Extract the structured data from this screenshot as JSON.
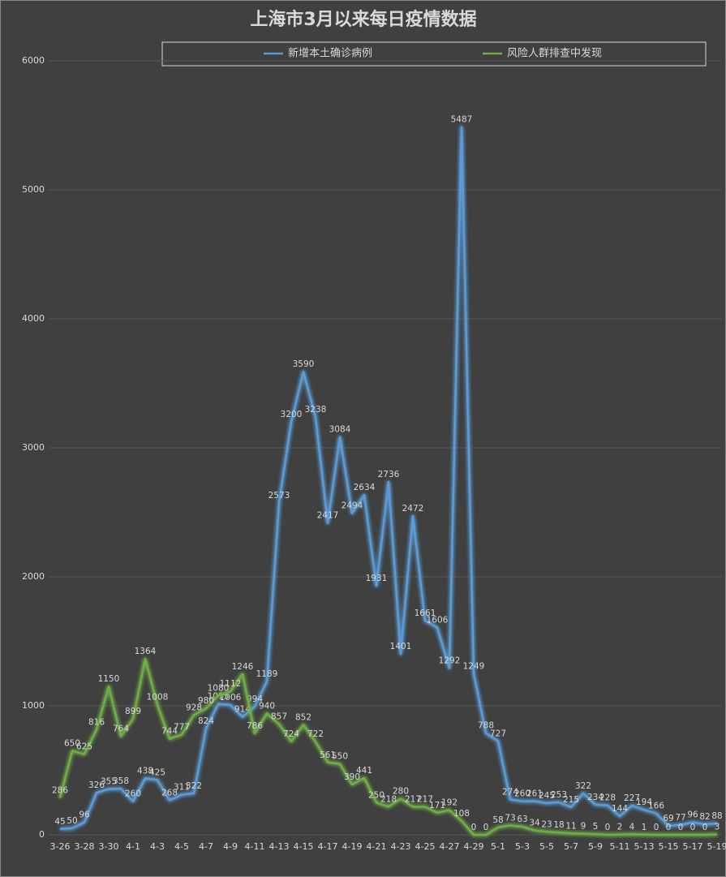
{
  "chart_data": {
    "type": "line",
    "title": "上海市3月以来每日疫情数据",
    "categories": [
      "3-26",
      null,
      "3-28",
      null,
      "3-30",
      null,
      "4-1",
      null,
      "4-3",
      null,
      "4-5",
      null,
      "4-7",
      null,
      "4-9",
      null,
      "4-11",
      null,
      "4-13",
      null,
      "4-15",
      null,
      "4-17",
      null,
      "4-19",
      null,
      "4-21",
      null,
      "4-23",
      null,
      "4-25",
      null,
      "4-27",
      null,
      "4-29",
      null,
      "5-1",
      null,
      "5-3",
      null,
      "5-5",
      null,
      "5-7",
      null,
      "5-9",
      null,
      "5-11",
      null,
      "5-13",
      null,
      "5-15",
      null,
      "5-17",
      null,
      "5-19"
    ],
    "series": [
      {
        "name": "新增本土确诊病例",
        "color": "#5b9bd5",
        "values": [
          45,
          50,
          96,
          326,
          355,
          358,
          260,
          438,
          425,
          268,
          311,
          322,
          824,
          1015,
          1006,
          914,
          994,
          1189,
          2573,
          3200,
          3590,
          3238,
          2417,
          3084,
          2494,
          2634,
          1931,
          2736,
          1401,
          2472,
          1661,
          1606,
          1292,
          5487,
          1249,
          788,
          727,
          274,
          260,
          261,
          245,
          253,
          215,
          322,
          234,
          228,
          144,
          227,
          194,
          166,
          69,
          77,
          96,
          82,
          88
        ]
      },
      {
        "name": "风险人群排查中发现",
        "color": "#70ad47",
        "values": [
          286,
          650,
          625,
          816,
          1150,
          764,
          899,
          1364,
          1008,
          744,
          777,
          928,
          980,
          1080,
          1112,
          1246,
          786,
          940,
          857,
          724,
          852,
          722,
          561,
          550,
          390,
          441,
          250,
          218,
          280,
          217,
          217,
          171,
          192,
          108,
          0,
          0,
          58,
          73,
          63,
          34,
          23,
          18,
          11,
          9,
          5,
          0,
          2,
          4,
          1,
          0,
          0,
          0,
          0,
          0,
          3
        ]
      }
    ],
    "ylim": [
      0,
      6000
    ],
    "yticks": [
      0,
      1000,
      2000,
      3000,
      4000,
      5000,
      6000
    ],
    "grid": true,
    "legend": "top"
  }
}
